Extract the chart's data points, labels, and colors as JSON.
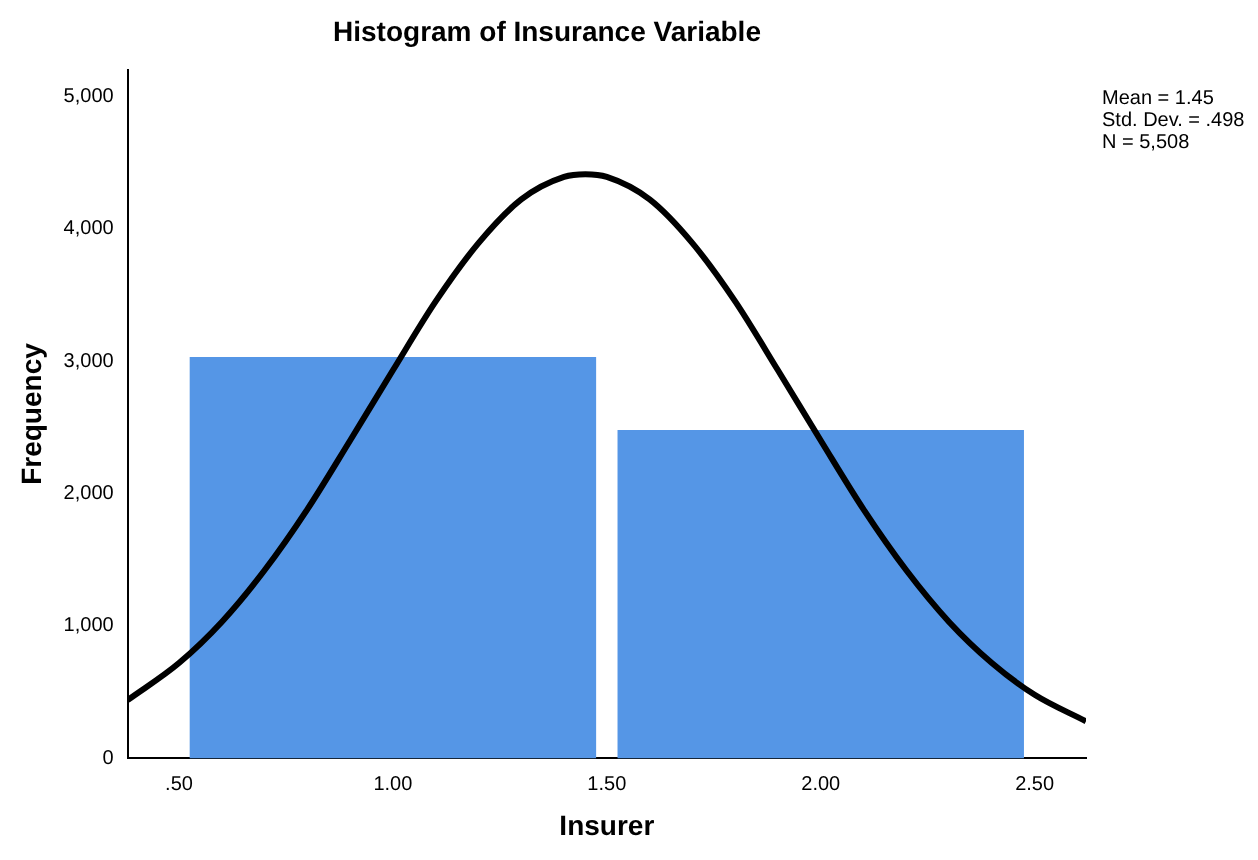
{
  "chart_data": {
    "type": "histogram",
    "title": "Histogram of Insurance Variable",
    "xlabel": "Insurer",
    "ylabel": "Frequency",
    "bins": [
      0.5,
      1.5,
      2.5
    ],
    "values": [
      3030,
      2480
    ],
    "color": "#5596e6",
    "series": [
      {
        "type": "line",
        "color": "#000000",
        "x": [
          0.38,
          0.5,
          0.6,
          0.7,
          0.8,
          0.9,
          1.0,
          1.1,
          1.2,
          1.3,
          1.4,
          1.45,
          1.5,
          1.6,
          1.7,
          1.8,
          1.9,
          2.0,
          2.1,
          2.2,
          2.3,
          2.4,
          2.5,
          2.62
        ],
        "values": [
          440,
          720,
          1030,
          1420,
          1880,
          2400,
          2930,
          3450,
          3890,
          4220,
          4390,
          4410,
          4390,
          4220,
          3890,
          3450,
          2930,
          2400,
          1880,
          1420,
          1030,
          720,
          480,
          280
        ]
      }
    ],
    "xlim": [
      0.38,
      2.62
    ],
    "xticks": [
      {
        "value": 0.5,
        "label": ".50"
      },
      {
        "value": 1.0,
        "label": "1.00"
      },
      {
        "value": 1.5,
        "label": "1.50"
      },
      {
        "value": 2.0,
        "label": "2.00"
      },
      {
        "value": 2.5,
        "label": "2.50"
      }
    ],
    "ylim": [
      0,
      5200
    ],
    "yticks": [
      0,
      {
        "value": 1000,
        "label": "1,000"
      },
      {
        "value": 2000,
        "label": "2,000"
      },
      {
        "value": 3000,
        "label": "3,000"
      },
      {
        "value": 4000,
        "label": "4,000"
      },
      {
        "value": 5000,
        "label": "5,000"
      }
    ],
    "annotations": [
      "Mean = 1.45",
      "Std. Dev. = .498",
      "N = 5,508"
    ],
    "grid": false,
    "legend": false,
    "marker": "none",
    "line_style": "solid"
  }
}
